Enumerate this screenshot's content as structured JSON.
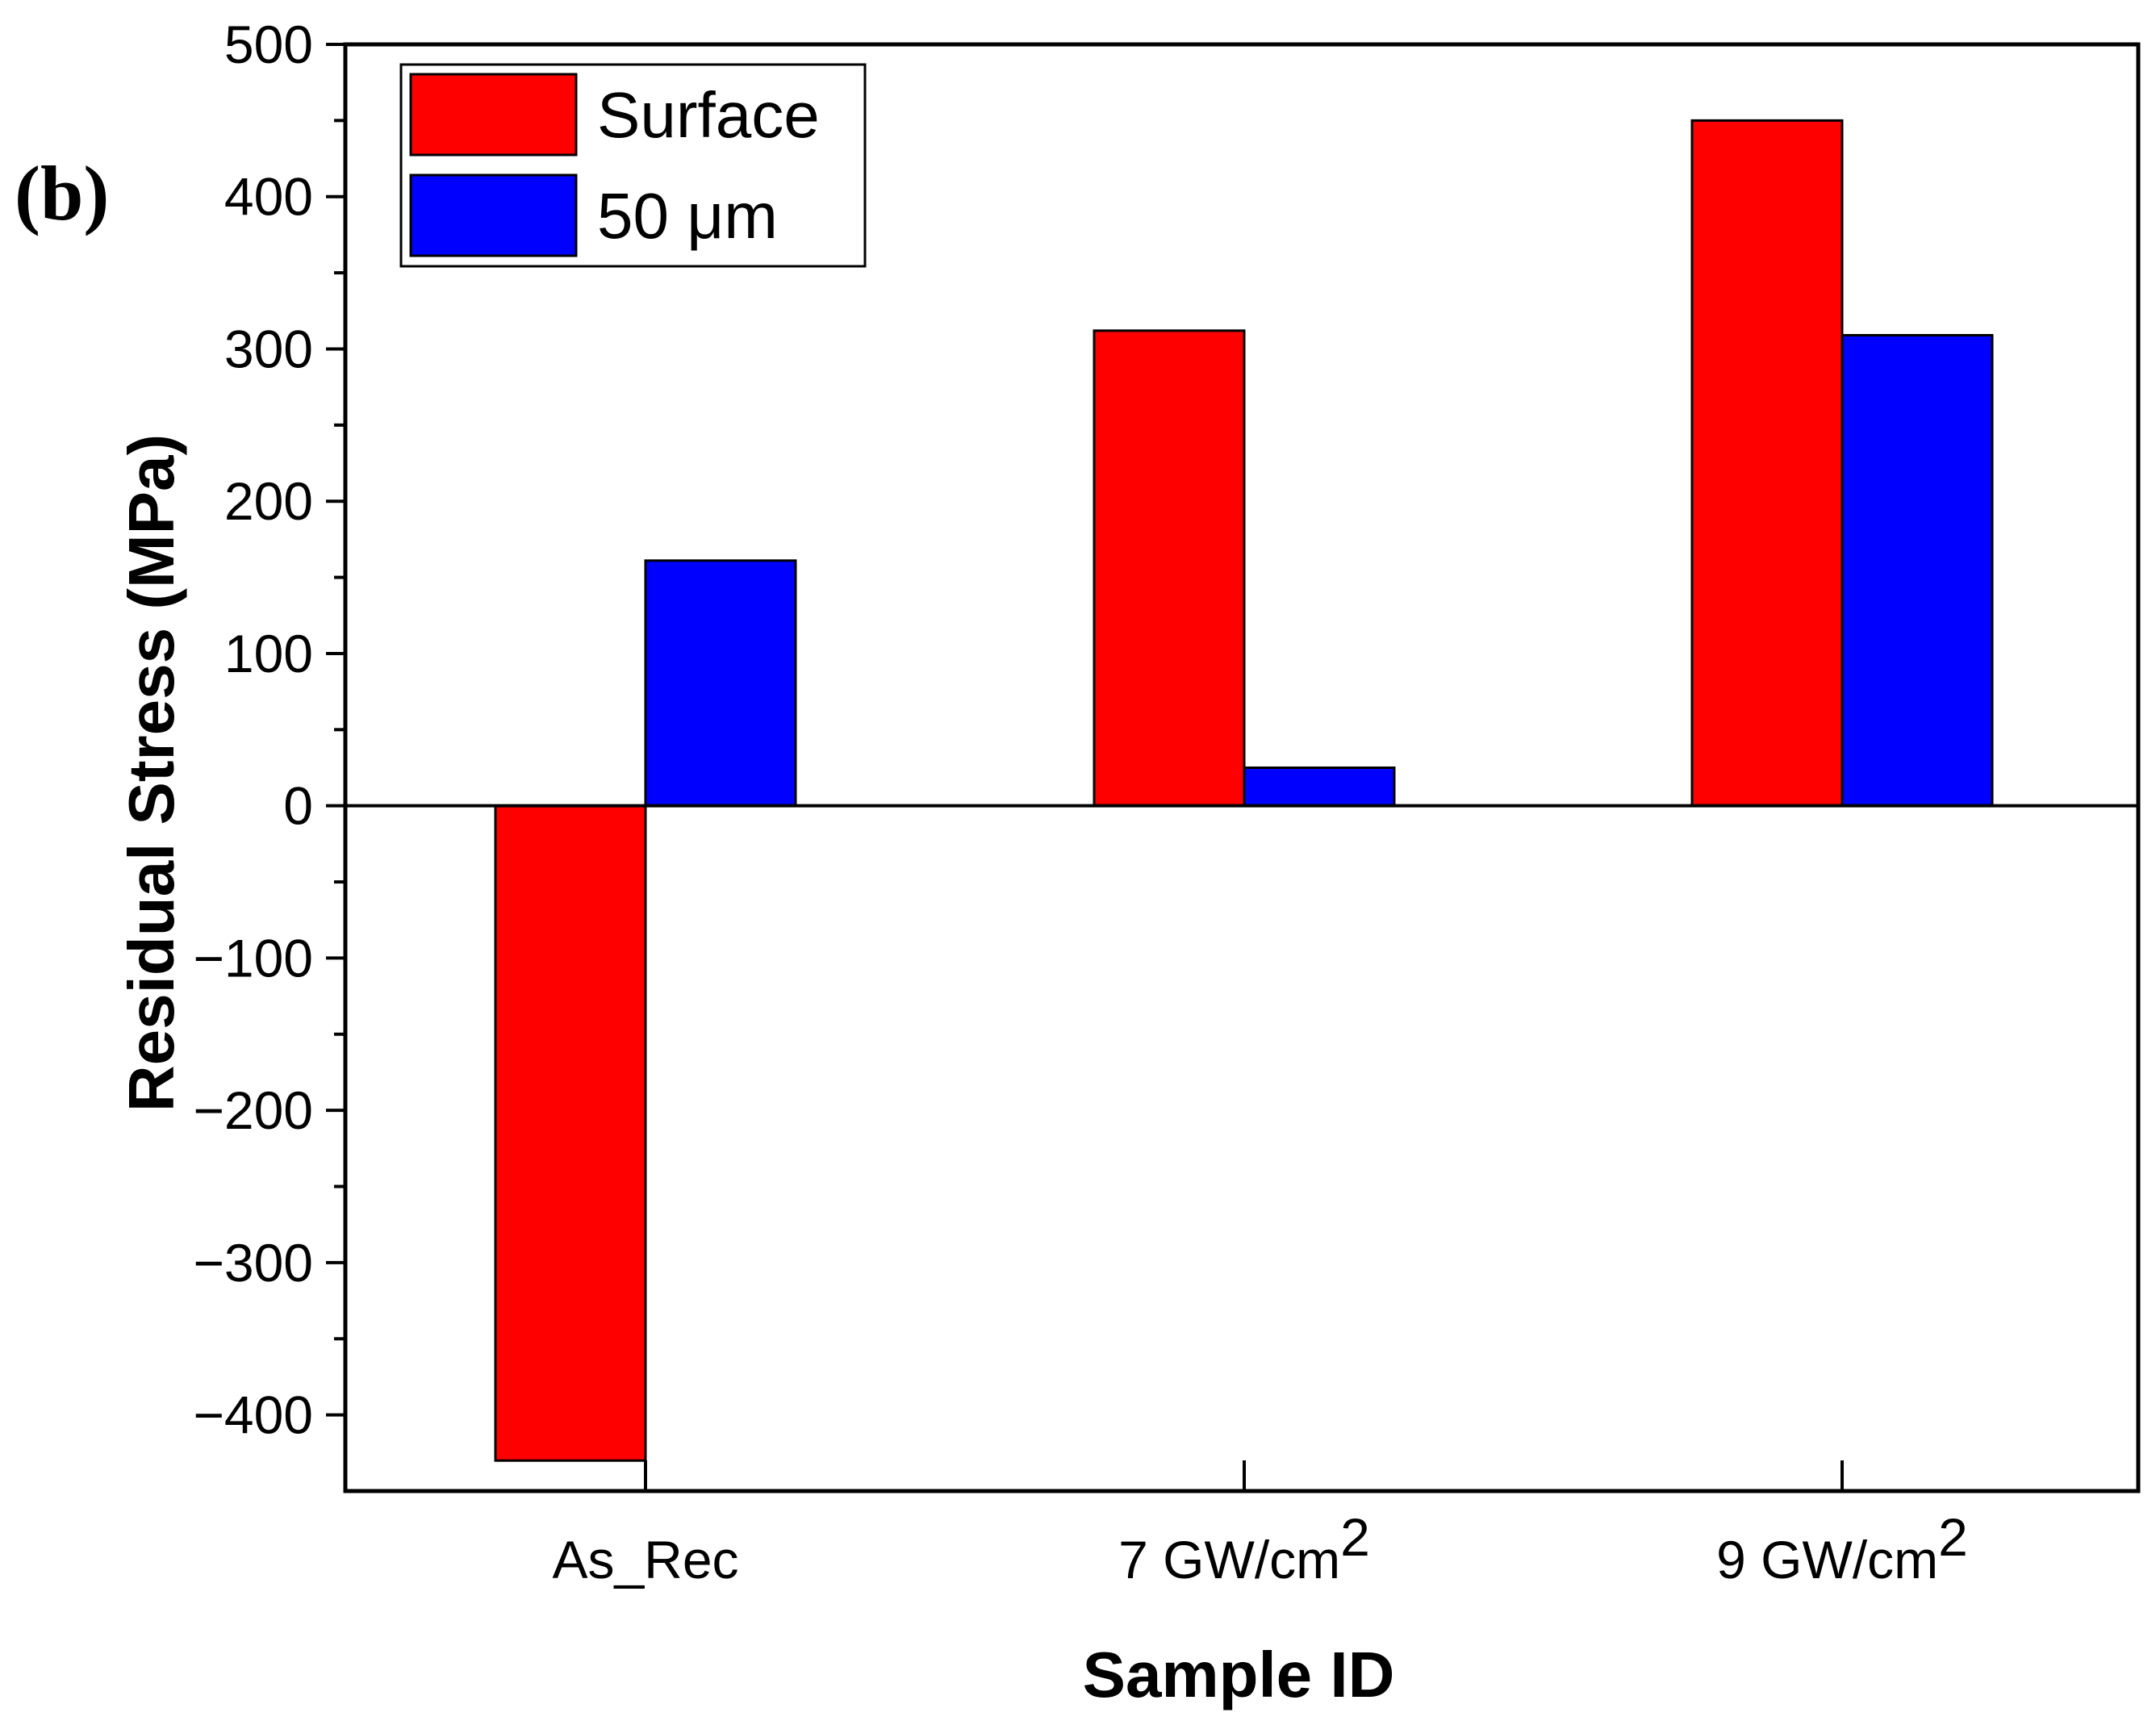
{
  "panel_label": "(b)",
  "chart_data": {
    "type": "bar",
    "title": "",
    "xlabel": "Sample ID",
    "ylabel": "Residual Stress (MPa)",
    "ylim": [
      -450,
      500
    ],
    "yticks": [
      500,
      400,
      300,
      200,
      100,
      0,
      -100,
      -200,
      -300,
      -400
    ],
    "ytick_labels": [
      "500",
      "400",
      "300",
      "200",
      "100",
      "0",
      "−100",
      "−200",
      "−300",
      "−400"
    ],
    "categories": [
      {
        "text": "As_Rec",
        "sup": ""
      },
      {
        "text": "7 GW/cm",
        "sup": "2"
      },
      {
        "text": "9 GW/cm",
        "sup": "2"
      }
    ],
    "series": [
      {
        "name": "Surface",
        "color": "#ff0000",
        "values": [
          -430,
          312,
          450
        ]
      },
      {
        "name": "50 μm",
        "color": "#0000ff",
        "values": [
          161,
          25,
          309
        ]
      }
    ],
    "legend_position": "top-left",
    "zero_line": true
  }
}
